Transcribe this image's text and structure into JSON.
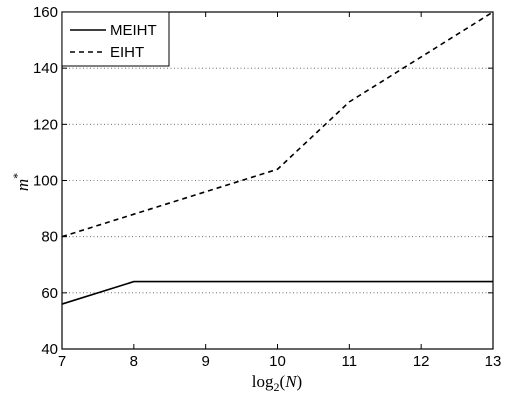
{
  "chart_data": {
    "type": "line",
    "title": "",
    "xlabel": "log2(N)",
    "ylabel": "m*",
    "xlim": [
      7,
      13
    ],
    "ylim": [
      40,
      160
    ],
    "x_ticks": [
      "7",
      "8",
      "9",
      "10",
      "11",
      "12",
      "13"
    ],
    "y_ticks": [
      "40",
      "60",
      "80",
      "100",
      "120",
      "140",
      "160"
    ],
    "grid": "horizontal dotted",
    "legend_position": "top-left",
    "series": [
      {
        "name": "MEIHT",
        "line_style": "solid",
        "color": "#000000",
        "x": [
          7,
          8,
          9,
          10,
          11,
          12,
          13
        ],
        "y": [
          56,
          64,
          64,
          64,
          64,
          64,
          64
        ]
      },
      {
        "name": "EIHT",
        "line_style": "dashed",
        "color": "#000000",
        "x": [
          7,
          8,
          9,
          10,
          11,
          12,
          13
        ],
        "y": [
          80,
          88,
          96,
          104,
          128,
          144,
          160
        ]
      }
    ]
  }
}
